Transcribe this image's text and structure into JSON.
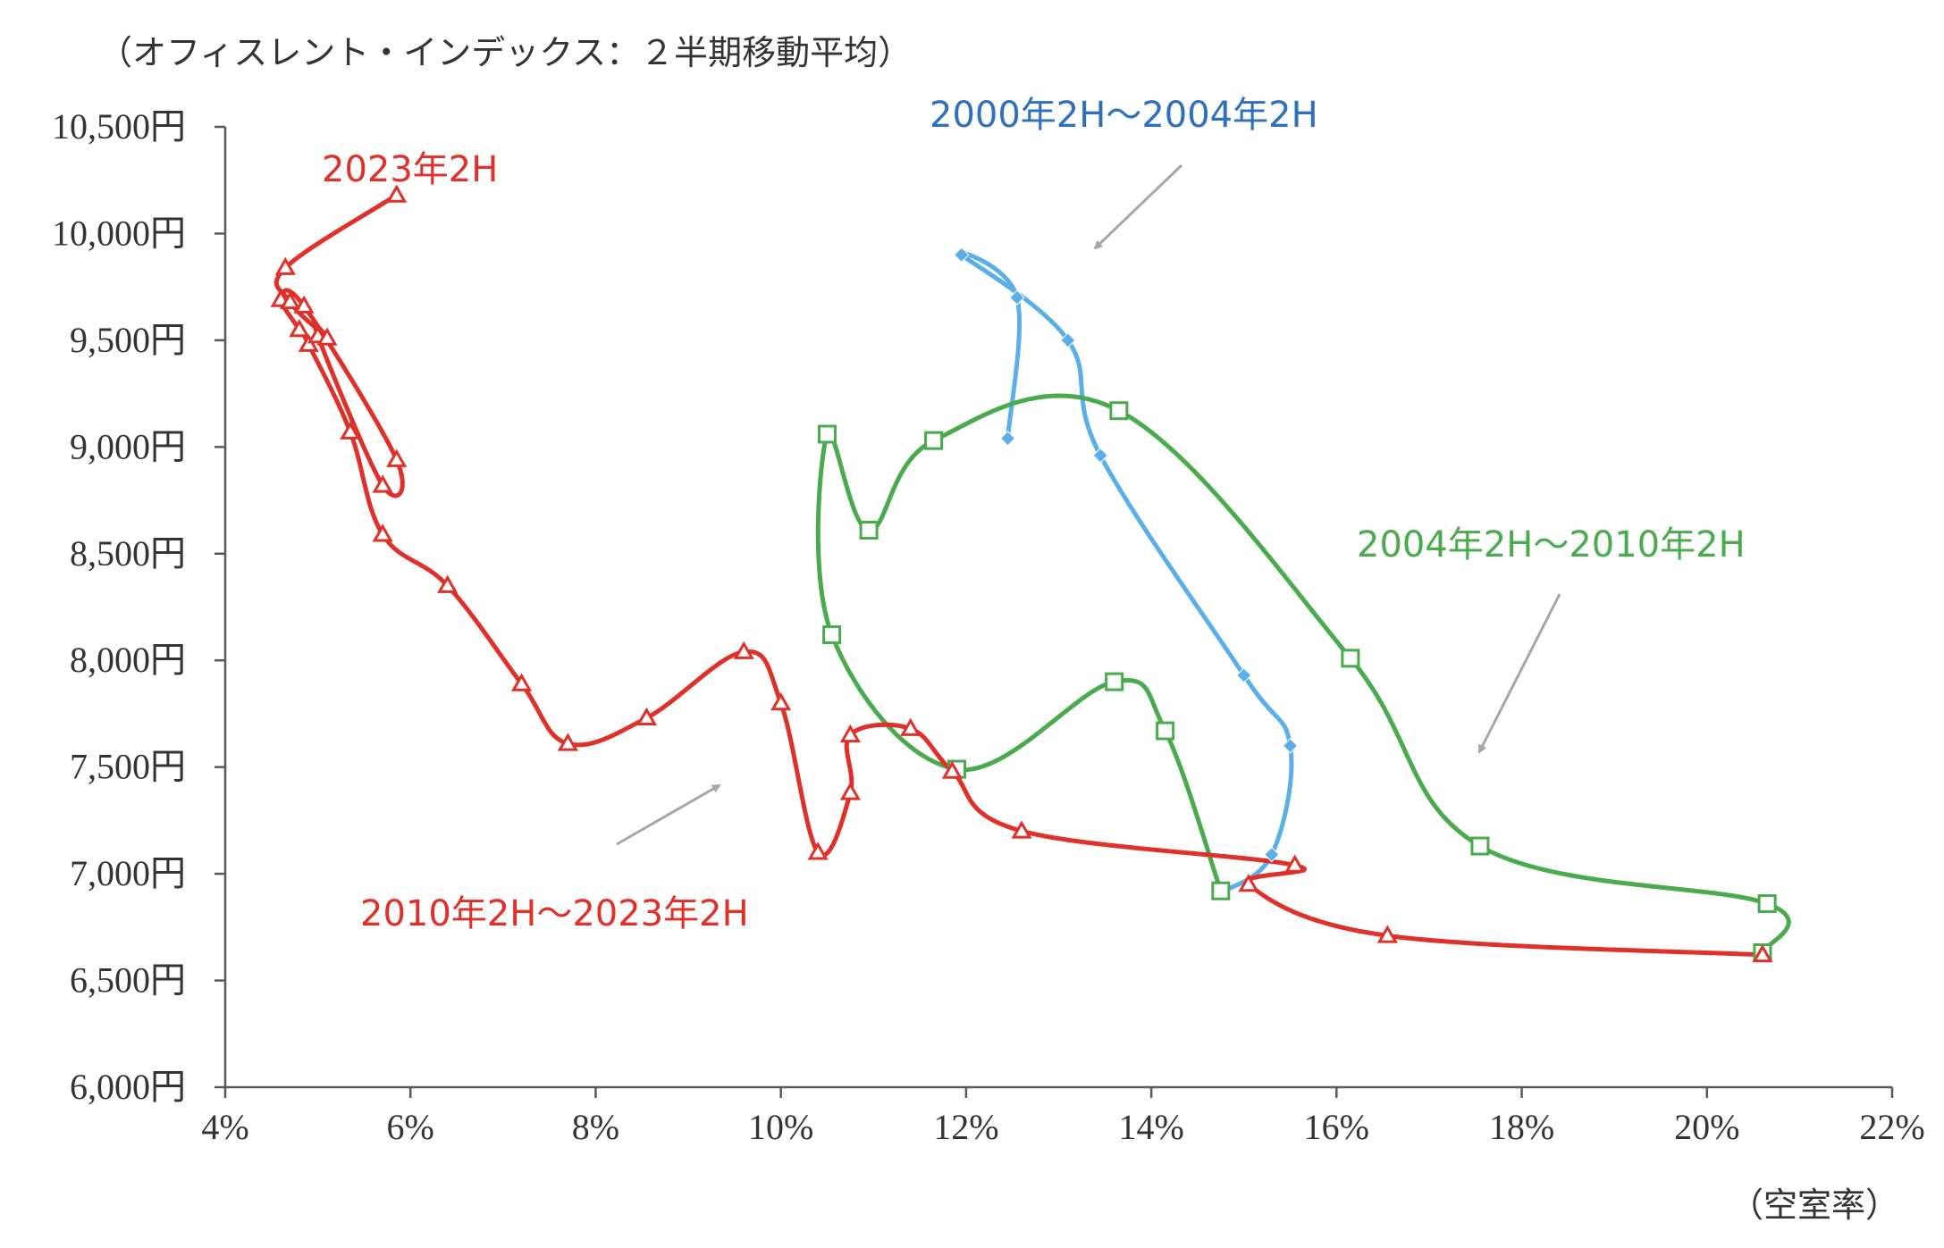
{
  "chart_data": {
    "type": "scatter",
    "y_unit_label": "（オフィスレント・インデックス：２半期移動平均）",
    "x_unit_label": "（空室率）",
    "xlim": [
      4,
      22
    ],
    "ylim": [
      6000,
      10500
    ],
    "x_ticks": [
      4,
      6,
      8,
      10,
      12,
      14,
      16,
      18,
      20,
      22
    ],
    "x_tick_labels": [
      "4%",
      "6%",
      "8%",
      "10%",
      "12%",
      "14%",
      "16%",
      "18%",
      "20%",
      "22%"
    ],
    "y_ticks": [
      6000,
      6500,
      7000,
      7500,
      8000,
      8500,
      9000,
      9500,
      10000,
      10500
    ],
    "y_tick_labels": [
      "6,000円",
      "6,500円",
      "7,000円",
      "7,500円",
      "8,000円",
      "8,500円",
      "9,000円",
      "9,500円",
      "10,000円",
      "10,500円"
    ],
    "grid": false,
    "legend": "none",
    "colors": {
      "blue": "#5aafe8",
      "green": "#4aaa4e",
      "red": "#e0302a",
      "arrow": "#a6a6a6",
      "blue_text": "#2f6fc0"
    },
    "series": [
      {
        "marker": "diamond",
        "color": "#5aafe8",
        "points": [
          [
            12.45,
            9040
          ],
          [
            12.55,
            9700
          ],
          [
            11.95,
            9900
          ],
          [
            13.1,
            9500
          ],
          [
            13.45,
            8960
          ],
          [
            15.0,
            7930
          ],
          [
            15.5,
            7600
          ],
          [
            15.3,
            7090
          ],
          [
            14.75,
            6910
          ]
        ]
      },
      {
        "marker": "square",
        "color": "#4aaa4e",
        "points": [
          [
            14.75,
            6920
          ],
          [
            14.15,
            7670
          ],
          [
            13.6,
            7900
          ],
          [
            11.9,
            7490
          ],
          [
            10.55,
            8120
          ],
          [
            10.5,
            9060
          ],
          [
            10.95,
            8610
          ],
          [
            11.65,
            9030
          ],
          [
            13.65,
            9170
          ],
          [
            16.15,
            8010
          ],
          [
            17.55,
            7130
          ],
          [
            20.65,
            6860
          ],
          [
            20.6,
            6630
          ]
        ]
      },
      {
        "marker": "triangle",
        "color": "#e0302a",
        "points": [
          [
            20.6,
            6620
          ],
          [
            16.55,
            6710
          ],
          [
            15.05,
            6950
          ],
          [
            15.55,
            7040
          ],
          [
            12.6,
            7200
          ],
          [
            11.85,
            7480
          ],
          [
            11.4,
            7680
          ],
          [
            10.75,
            7650
          ],
          [
            10.75,
            7380
          ],
          [
            10.4,
            7100
          ],
          [
            10.0,
            7800
          ],
          [
            9.6,
            8040
          ],
          [
            8.55,
            7730
          ],
          [
            7.7,
            7610
          ],
          [
            7.2,
            7890
          ],
          [
            6.4,
            8350
          ],
          [
            5.7,
            8590
          ],
          [
            5.35,
            9070
          ],
          [
            4.9,
            9480
          ],
          [
            4.8,
            9550
          ],
          [
            4.6,
            9690
          ],
          [
            4.85,
            9660
          ],
          [
            5.85,
            8940
          ],
          [
            5.7,
            8820
          ],
          [
            5.0,
            9520
          ],
          [
            5.1,
            9510
          ],
          [
            4.7,
            9680
          ],
          [
            4.65,
            9840
          ],
          [
            5.85,
            10180
          ]
        ]
      }
    ],
    "annotations": [
      {
        "text": "2000年2H～2004年2H",
        "color": "#2f6fc0"
      },
      {
        "text": "2004年2H～2010年2H",
        "color": "#4aaa4e"
      },
      {
        "text": "2010年2H～2023年2H",
        "color": "#e0302a"
      },
      {
        "text": "2023年2H",
        "color": "#e0302a"
      }
    ]
  }
}
